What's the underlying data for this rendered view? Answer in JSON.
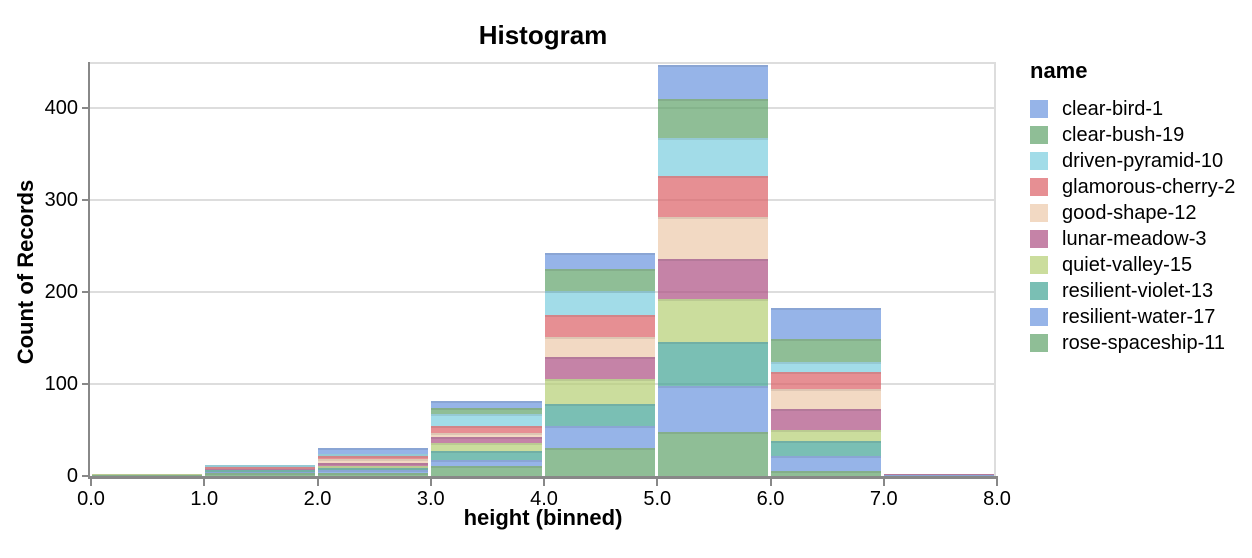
{
  "title": "Histogram",
  "legend": {
    "title": "name"
  },
  "chart_data": {
    "type": "bar",
    "variant": "stacked-histogram",
    "title": "Histogram",
    "xlabel": "height (binned)",
    "ylabel": "Count of Records",
    "x_tick_labels": [
      "0.0",
      "1.0",
      "2.0",
      "3.0",
      "4.0",
      "5.0",
      "6.0",
      "7.0",
      "8.0"
    ],
    "y_tick_labels": [
      "0",
      "100",
      "200",
      "300",
      "400"
    ],
    "y_ticks": [
      0,
      100,
      200,
      300,
      400
    ],
    "xlim": [
      0,
      8
    ],
    "ylim": [
      0,
      450
    ],
    "grid": true,
    "legend_position": "right",
    "bar_opacity": 0.7,
    "stack_order": "first-series-on-top",
    "bins": [
      {
        "x0": 0,
        "x1": 1
      },
      {
        "x0": 1,
        "x1": 2
      },
      {
        "x0": 2,
        "x1": 3
      },
      {
        "x0": 3,
        "x1": 4
      },
      {
        "x0": 4,
        "x1": 5
      },
      {
        "x0": 5,
        "x1": 6
      },
      {
        "x0": 6,
        "x1": 7
      },
      {
        "x0": 7,
        "x1": 8
      }
    ],
    "bin_totals": [
      2,
      12,
      30,
      81,
      242,
      447,
      183,
      2
    ],
    "series": [
      {
        "name": "clear-bird-1",
        "color": "#6994de",
        "values": [
          0,
          0,
          6,
          7,
          17,
          37,
          34,
          0
        ]
      },
      {
        "name": "clear-bush-19",
        "color": "#60a36a",
        "values": [
          0,
          0,
          0,
          7,
          24,
          43,
          25,
          0
        ]
      },
      {
        "name": "driven-pyramid-10",
        "color": "#7acdde",
        "values": [
          0,
          2,
          2,
          13,
          26,
          41,
          11,
          0
        ]
      },
      {
        "name": "glamorous-cherry-2",
        "color": "#db6065",
        "values": [
          0,
          2,
          4,
          7,
          24,
          45,
          18,
          0
        ]
      },
      {
        "name": "good-shape-12",
        "color": "#ecc9a9",
        "values": [
          0,
          0,
          4,
          5,
          22,
          45,
          22,
          0
        ]
      },
      {
        "name": "lunar-meadow-3",
        "color": "#ac4e81",
        "values": [
          0,
          2,
          3,
          6,
          24,
          44,
          23,
          1
        ]
      },
      {
        "name": "quiet-valley-15",
        "color": "#b5ce73",
        "values": [
          1,
          0,
          2,
          9,
          27,
          46,
          12,
          0
        ]
      },
      {
        "name": "resilient-violet-13",
        "color": "#42a494",
        "values": [
          0,
          2,
          3,
          10,
          24,
          48,
          16,
          0
        ]
      },
      {
        "name": "resilient-water-17",
        "color": "#6994de",
        "values": [
          0,
          1,
          3,
          6,
          24,
          50,
          17,
          1
        ]
      },
      {
        "name": "rose-spaceship-11",
        "color": "#60a36a",
        "values": [
          1,
          3,
          3,
          11,
          30,
          48,
          5,
          0
        ]
      }
    ]
  }
}
